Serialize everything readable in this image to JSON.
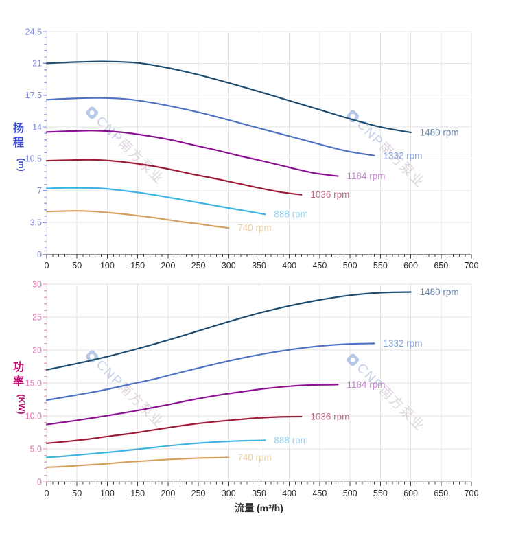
{
  "colors": {
    "background": "#ffffff",
    "grid": "#e3e3e3",
    "x_axis_line": "#8a8a8a",
    "x_tick": "#3c3c3c",
    "x_tick_label": "#2b2b2b",
    "x_title": "#2b2b2b",
    "watermark_logo": "#a9bfe2",
    "watermark_latin": "#bcc8e6",
    "watermark_cjk": "#d9cdd9"
  },
  "watermark": {
    "latin": "CNP",
    "cjk": "南方泵业"
  },
  "chart_data": [
    {
      "type": "line",
      "title": "",
      "xlabel": "",
      "ylabel": "扬程 (m)",
      "ylabel_chars": [
        "扬",
        "程"
      ],
      "ylabel_unit": "(m)",
      "x_range": [
        0,
        700
      ],
      "x_major_tick": 50,
      "x_minor_tick": 10,
      "x_tick_labels": [
        "0",
        "50",
        "100",
        "150",
        "200",
        "250",
        "300",
        "350",
        "400",
        "450",
        "500",
        "550",
        "600",
        "650",
        "700"
      ],
      "y_range": [
        0,
        24.5
      ],
      "y_major_tick": 3.5,
      "y_minor_tick": 0.7,
      "y_tick_labels": [
        "24.5",
        "21",
        "17.5",
        "14",
        "10.5",
        "7",
        "3.5",
        "0"
      ],
      "grid": true,
      "legend_position": "curve-end-right",
      "tick_color": "#8a96e8",
      "tick_label_color": "#7b87e2",
      "title_color": "#3a49cd",
      "series": [
        {
          "name": "1480 rpm",
          "color": "#1d4d70",
          "label_color": "#6d89a6",
          "x": [
            0,
            50,
            100,
            150,
            200,
            250,
            300,
            350,
            400,
            450,
            500,
            550,
            600
          ],
          "y": [
            21.0,
            21.15,
            21.2,
            21.05,
            20.5,
            19.75,
            18.85,
            17.9,
            16.9,
            15.9,
            14.9,
            14.0,
            13.4
          ]
        },
        {
          "name": "1332 rpm",
          "color": "#4e73c2",
          "label_color": "#87a3da",
          "x": [
            0,
            45,
            90,
            135,
            180,
            225,
            270,
            315,
            360,
            405,
            450,
            495,
            540
          ],
          "y": [
            17.0,
            17.15,
            17.2,
            17.05,
            16.6,
            16.0,
            15.3,
            14.5,
            13.7,
            12.9,
            12.1,
            11.35,
            10.85
          ]
        },
        {
          "name": "1184 rpm",
          "color": "#8d1193",
          "label_color": "#c583cf",
          "x": [
            0,
            40,
            80,
            120,
            160,
            200,
            240,
            280,
            320,
            360,
            400,
            440,
            480
          ],
          "y": [
            13.45,
            13.55,
            13.6,
            13.45,
            13.1,
            12.65,
            12.05,
            11.45,
            10.8,
            10.2,
            9.55,
            8.95,
            8.6
          ]
        },
        {
          "name": "1036 rpm",
          "color": "#9e1a39",
          "label_color": "#bb6b80",
          "x": [
            0,
            35,
            70,
            105,
            140,
            175,
            210,
            245,
            280,
            315,
            350,
            385,
            420
          ],
          "y": [
            10.3,
            10.36,
            10.4,
            10.3,
            10.05,
            9.7,
            9.25,
            8.75,
            8.3,
            7.8,
            7.3,
            6.85,
            6.55
          ]
        },
        {
          "name": "888 rpm",
          "color": "#3fb3e3",
          "label_color": "#94d2f2",
          "x": [
            0,
            30,
            60,
            90,
            120,
            150,
            180,
            210,
            240,
            270,
            300,
            330,
            360
          ],
          "y": [
            7.25,
            7.3,
            7.3,
            7.25,
            7.05,
            6.8,
            6.5,
            6.15,
            5.8,
            5.45,
            5.1,
            4.75,
            4.4
          ]
        },
        {
          "name": "740 rpm",
          "color": "#d3a161",
          "label_color": "#eccfa4",
          "x": [
            0,
            25,
            50,
            75,
            100,
            125,
            150,
            175,
            200,
            225,
            250,
            275,
            300
          ],
          "y": [
            4.7,
            4.75,
            4.78,
            4.73,
            4.6,
            4.45,
            4.25,
            4.05,
            3.8,
            3.55,
            3.35,
            3.1,
            2.9
          ]
        }
      ]
    },
    {
      "type": "line",
      "title": "",
      "xlabel": "流量 (m³/h)",
      "ylabel": "功率 (KW)",
      "ylabel_chars": [
        "功",
        "率"
      ],
      "ylabel_unit": "(KW)",
      "x_range": [
        0,
        700
      ],
      "x_major_tick": 50,
      "x_minor_tick": 10,
      "x_tick_labels": [
        "0",
        "50",
        "100",
        "150",
        "200",
        "250",
        "300",
        "350",
        "400",
        "450",
        "500",
        "550",
        "600",
        "650",
        "700"
      ],
      "y_range": [
        0,
        30
      ],
      "y_major_tick": 5,
      "y_minor_tick": 1,
      "y_tick_labels": [
        "30",
        "25",
        "20",
        "15.0",
        "10.0",
        "5.0",
        "0"
      ],
      "grid": true,
      "legend_position": "curve-end-right",
      "tick_color": "#f092c4",
      "tick_label_color": "#e36fae",
      "title_color": "#bd0d72",
      "series": [
        {
          "name": "1480 rpm",
          "color": "#1d4d70",
          "label_color": "#6d89a6",
          "x": [
            0,
            50,
            100,
            150,
            200,
            250,
            300,
            350,
            400,
            450,
            500,
            550,
            600
          ],
          "y": [
            17.0,
            17.95,
            19.0,
            20.2,
            21.5,
            22.9,
            24.3,
            25.6,
            26.7,
            27.6,
            28.3,
            28.7,
            28.8
          ]
        },
        {
          "name": "1332 rpm",
          "color": "#4e73c2",
          "label_color": "#87a3da",
          "x": [
            0,
            45,
            90,
            135,
            180,
            225,
            270,
            315,
            360,
            405,
            450,
            495,
            540
          ],
          "y": [
            12.4,
            13.1,
            13.85,
            14.75,
            15.65,
            16.7,
            17.7,
            18.65,
            19.45,
            20.1,
            20.6,
            20.9,
            21.0
          ]
        },
        {
          "name": "1184 rpm",
          "color": "#8d1193",
          "label_color": "#c583cf",
          "x": [
            0,
            40,
            80,
            120,
            160,
            200,
            240,
            280,
            320,
            360,
            400,
            440,
            480
          ],
          "y": [
            8.7,
            9.2,
            9.75,
            10.35,
            11.0,
            11.7,
            12.45,
            13.1,
            13.65,
            14.15,
            14.5,
            14.7,
            14.75
          ]
        },
        {
          "name": "1036 rpm",
          "color": "#9e1a39",
          "label_color": "#bb6b80",
          "x": [
            0,
            35,
            70,
            105,
            140,
            175,
            210,
            245,
            280,
            315,
            350,
            385,
            420
          ],
          "y": [
            5.85,
            6.15,
            6.5,
            6.95,
            7.35,
            7.85,
            8.35,
            8.8,
            9.15,
            9.45,
            9.7,
            9.85,
            9.9
          ]
        },
        {
          "name": "888 rpm",
          "color": "#3fb3e3",
          "label_color": "#94d2f2",
          "x": [
            0,
            30,
            60,
            90,
            120,
            150,
            180,
            210,
            240,
            270,
            300,
            330,
            360
          ],
          "y": [
            3.7,
            3.9,
            4.15,
            4.4,
            4.65,
            4.95,
            5.25,
            5.55,
            5.8,
            6.0,
            6.15,
            6.25,
            6.3
          ]
        },
        {
          "name": "740 rpm",
          "color": "#d3a161",
          "label_color": "#eccfa4",
          "x": [
            0,
            25,
            50,
            75,
            100,
            125,
            150,
            175,
            200,
            225,
            250,
            275,
            300
          ],
          "y": [
            2.2,
            2.3,
            2.45,
            2.6,
            2.75,
            2.95,
            3.1,
            3.25,
            3.4,
            3.5,
            3.6,
            3.65,
            3.7
          ]
        }
      ]
    }
  ]
}
